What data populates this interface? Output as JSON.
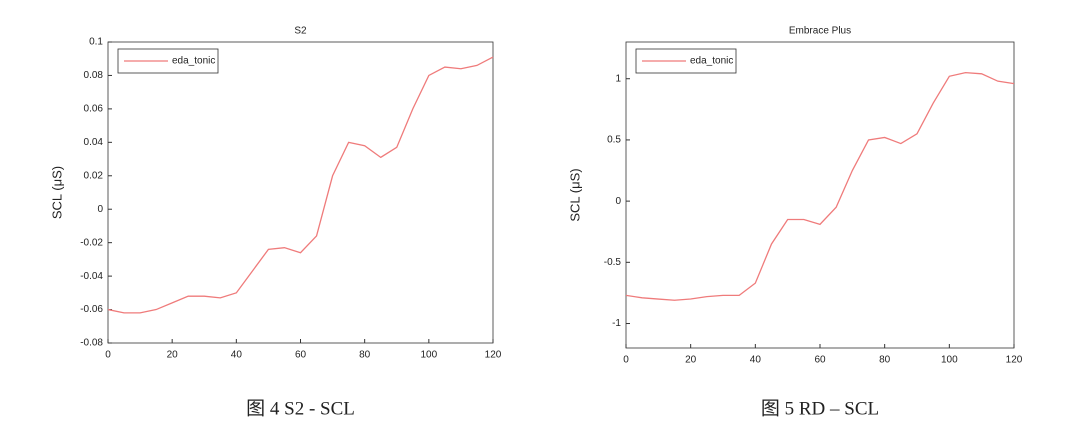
{
  "chart_data": [
    {
      "type": "line",
      "title": "S2",
      "ylabel": "SCL (μS)",
      "caption": "图 4 S2 - SCL",
      "x": [
        0,
        5,
        10,
        15,
        20,
        25,
        30,
        35,
        40,
        45,
        50,
        55,
        60,
        65,
        70,
        75,
        80,
        85,
        90,
        95,
        100,
        105,
        110,
        115,
        120
      ],
      "series": [
        {
          "name": "eda_tonic",
          "color": "#ef7b7b",
          "values": [
            -0.06,
            -0.062,
            -0.062,
            -0.06,
            -0.056,
            -0.052,
            -0.052,
            -0.053,
            -0.05,
            -0.037,
            -0.024,
            -0.023,
            -0.026,
            -0.016,
            0.02,
            0.04,
            0.038,
            0.031,
            0.037,
            0.06,
            0.08,
            0.085,
            0.084,
            0.086,
            0.091
          ]
        }
      ],
      "xlim": [
        0,
        120
      ],
      "xticks": [
        0,
        20,
        40,
        60,
        80,
        100,
        120
      ],
      "ylim": [
        -0.08,
        0.1
      ],
      "yticks": [
        -0.08,
        -0.06,
        -0.04,
        -0.02,
        0,
        0.02,
        0.04,
        0.06,
        0.08,
        0.1
      ],
      "legend": "upper-left"
    },
    {
      "type": "line",
      "title": "Embrace Plus",
      "ylabel": "SCL (μS)",
      "caption": "图 5 RD – SCL",
      "x": [
        0,
        5,
        10,
        15,
        20,
        25,
        30,
        35,
        40,
        45,
        50,
        55,
        60,
        65,
        70,
        75,
        80,
        85,
        90,
        95,
        100,
        105,
        110,
        115,
        120
      ],
      "series": [
        {
          "name": "eda_tonic",
          "color": "#ef7b7b",
          "values": [
            -0.77,
            -0.79,
            -0.8,
            -0.81,
            -0.8,
            -0.78,
            -0.77,
            -0.77,
            -0.67,
            -0.35,
            -0.15,
            -0.15,
            -0.19,
            -0.05,
            0.25,
            0.5,
            0.52,
            0.47,
            0.55,
            0.8,
            1.02,
            1.05,
            1.04,
            0.98,
            0.96
          ]
        }
      ],
      "xlim": [
        0,
        120
      ],
      "xticks": [
        0,
        20,
        40,
        60,
        80,
        100,
        120
      ],
      "ylim": [
        -1.2,
        1.3
      ],
      "yticks": [
        -1,
        -0.5,
        0,
        0.5,
        1
      ],
      "legend": "upper-left"
    }
  ]
}
